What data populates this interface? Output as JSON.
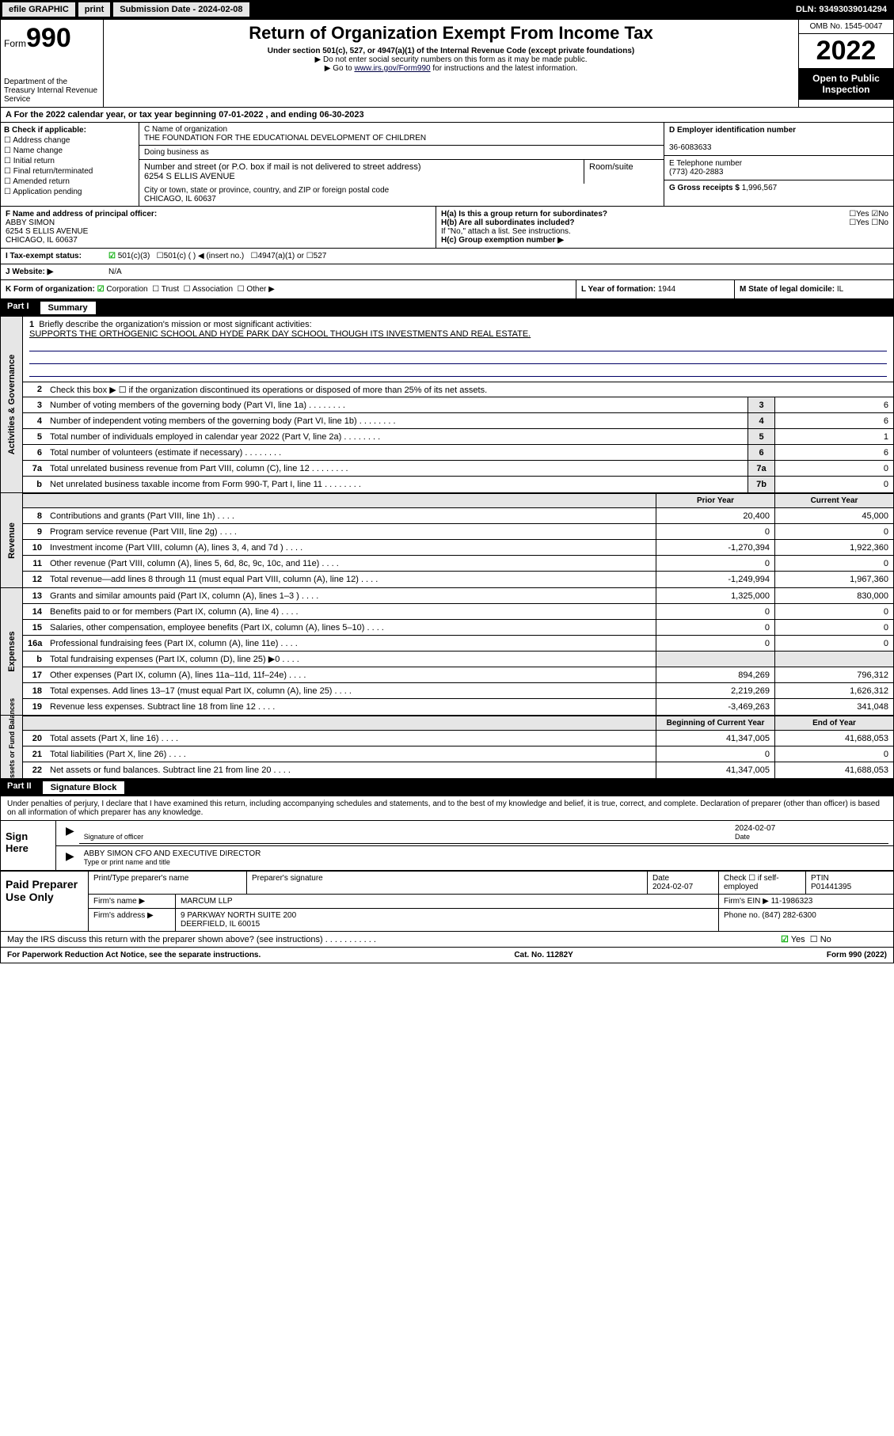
{
  "topbar": {
    "efile": "efile GRAPHIC",
    "print": "print",
    "subdate_label": "Submission Date - 2024-02-08",
    "dln": "DLN: 93493039014294"
  },
  "header": {
    "form_label": "Form",
    "form_num": "990",
    "dept": "Department of the Treasury\nInternal Revenue Service",
    "title": "Return of Organization Exempt From Income Tax",
    "sub1": "Under section 501(c), 527, or 4947(a)(1) of the Internal Revenue Code (except private foundations)",
    "sub2": "▶ Do not enter social security numbers on this form as it may be made public.",
    "sub3_pre": "▶ Go to ",
    "sub3_link": "www.irs.gov/Form990",
    "sub3_post": " for instructions and the latest information.",
    "omb": "OMB No. 1545-0047",
    "year": "2022",
    "inspection": "Open to Public Inspection"
  },
  "row_a": {
    "text": "A For the 2022 calendar year, or tax year beginning 07-01-2022    , and ending 06-30-2023"
  },
  "col_b": {
    "label": "B Check if applicable:",
    "items": [
      "Address change",
      "Name change",
      "Initial return",
      "Final return/terminated",
      "Amended return",
      "Application pending"
    ]
  },
  "col_c": {
    "name_label": "C Name of organization",
    "name": "THE FOUNDATION FOR THE EDUCATIONAL DEVELOPMENT OF CHILDREN",
    "dba_label": "Doing business as",
    "addr_label": "Number and street (or P.O. box if mail is not delivered to street address)",
    "room_label": "Room/suite",
    "addr": "6254 S ELLIS AVENUE",
    "city_label": "City or town, state or province, country, and ZIP or foreign postal code",
    "city": "CHICAGO, IL  60637"
  },
  "col_d": {
    "ein_label": "D Employer identification number",
    "ein": "36-6083633",
    "phone_label": "E Telephone number",
    "phone": "(773) 420-2883",
    "gross_label": "G Gross receipts $",
    "gross": "1,996,567"
  },
  "col_f": {
    "label": "F Name and address of principal officer:",
    "name": "ABBY SIMON",
    "addr1": "6254 S ELLIS AVENUE",
    "addr2": "CHICAGO, IL  60637"
  },
  "col_h": {
    "ha": "H(a)  Is this a group return for subordinates?",
    "hb": "H(b)  Are all subordinates included?",
    "hb_note": "If \"No,\" attach a list. See instructions.",
    "hc": "H(c)  Group exemption number ▶"
  },
  "row_i": {
    "label": "I  Tax-exempt status:",
    "opt1": "501(c)(3)",
    "opt2": "501(c) (   ) ◀ (insert no.)",
    "opt3": "4947(a)(1) or",
    "opt4": "527"
  },
  "row_j": {
    "label": "J  Website: ▶",
    "val": "N/A"
  },
  "row_k": {
    "label": "K Form of organization:",
    "opts": [
      "Corporation",
      "Trust",
      "Association",
      "Other ▶"
    ]
  },
  "row_l": {
    "label": "L Year of formation:",
    "val": "1944"
  },
  "row_m": {
    "label": "M State of legal domicile:",
    "val": "IL"
  },
  "part1": {
    "title": "Part I",
    "label": "Summary",
    "line1": "Briefly describe the organization's mission or most significant activities:",
    "mission": "SUPPORTS THE ORTHOGENIC SCHOOL AND HYDE PARK DAY SCHOOL THOUGH ITS INVESTMENTS AND REAL ESTATE.",
    "line2": "Check this box ▶ ☐  if the organization discontinued its operations or disposed of more than 25% of its net assets.",
    "lines_single": [
      {
        "n": "3",
        "d": "Number of voting members of the governing body (Part VI, line 1a)",
        "c": "3",
        "v": "6"
      },
      {
        "n": "4",
        "d": "Number of independent voting members of the governing body (Part VI, line 1b)",
        "c": "4",
        "v": "6"
      },
      {
        "n": "5",
        "d": "Total number of individuals employed in calendar year 2022 (Part V, line 2a)",
        "c": "5",
        "v": "1"
      },
      {
        "n": "6",
        "d": "Total number of volunteers (estimate if necessary)",
        "c": "6",
        "v": "6"
      },
      {
        "n": "7a",
        "d": "Total unrelated business revenue from Part VIII, column (C), line 12",
        "c": "7a",
        "v": "0"
      },
      {
        "n": "b",
        "d": "Net unrelated business taxable income from Form 990-T, Part I, line 11",
        "c": "7b",
        "v": "0"
      }
    ],
    "hdr_prior": "Prior Year",
    "hdr_curr": "Current Year",
    "revenue": [
      {
        "n": "8",
        "d": "Contributions and grants (Part VIII, line 1h)",
        "p": "20,400",
        "c": "45,000"
      },
      {
        "n": "9",
        "d": "Program service revenue (Part VIII, line 2g)",
        "p": "0",
        "c": "0"
      },
      {
        "n": "10",
        "d": "Investment income (Part VIII, column (A), lines 3, 4, and 7d )",
        "p": "-1,270,394",
        "c": "1,922,360"
      },
      {
        "n": "11",
        "d": "Other revenue (Part VIII, column (A), lines 5, 6d, 8c, 9c, 10c, and 11e)",
        "p": "0",
        "c": "0"
      },
      {
        "n": "12",
        "d": "Total revenue—add lines 8 through 11 (must equal Part VIII, column (A), line 12)",
        "p": "-1,249,994",
        "c": "1,967,360"
      }
    ],
    "expenses": [
      {
        "n": "13",
        "d": "Grants and similar amounts paid (Part IX, column (A), lines 1–3 )",
        "p": "1,325,000",
        "c": "830,000"
      },
      {
        "n": "14",
        "d": "Benefits paid to or for members (Part IX, column (A), line 4)",
        "p": "0",
        "c": "0"
      },
      {
        "n": "15",
        "d": "Salaries, other compensation, employee benefits (Part IX, column (A), lines 5–10)",
        "p": "0",
        "c": "0"
      },
      {
        "n": "16a",
        "d": "Professional fundraising fees (Part IX, column (A), line 11e)",
        "p": "0",
        "c": "0"
      },
      {
        "n": "b",
        "d": "Total fundraising expenses (Part IX, column (D), line 25) ▶0",
        "p": "",
        "c": "",
        "gray": true
      },
      {
        "n": "17",
        "d": "Other expenses (Part IX, column (A), lines 11a–11d, 11f–24e)",
        "p": "894,269",
        "c": "796,312"
      },
      {
        "n": "18",
        "d": "Total expenses. Add lines 13–17 (must equal Part IX, column (A), line 25)",
        "p": "2,219,269",
        "c": "1,626,312"
      },
      {
        "n": "19",
        "d": "Revenue less expenses. Subtract line 18 from line 12",
        "p": "-3,469,263",
        "c": "341,048"
      }
    ],
    "hdr_begin": "Beginning of Current Year",
    "hdr_end": "End of Year",
    "netassets": [
      {
        "n": "20",
        "d": "Total assets (Part X, line 16)",
        "p": "41,347,005",
        "c": "41,688,053"
      },
      {
        "n": "21",
        "d": "Total liabilities (Part X, line 26)",
        "p": "0",
        "c": "0"
      },
      {
        "n": "22",
        "d": "Net assets or fund balances. Subtract line 21 from line 20",
        "p": "41,347,005",
        "c": "41,688,053"
      }
    ],
    "sidebars": [
      "Activities & Governance",
      "Revenue",
      "Expenses",
      "Net Assets or Fund Balances"
    ]
  },
  "part2": {
    "title": "Part II",
    "label": "Signature Block",
    "intro": "Under penalties of perjury, I declare that I have examined this return, including accompanying schedules and statements, and to the best of my knowledge and belief, it is true, correct, and complete. Declaration of preparer (other than officer) is based on all information of which preparer has any knowledge.",
    "sign_here": "Sign Here",
    "sig_officer": "Signature of officer",
    "sig_date": "Date",
    "sig_date_val": "2024-02-07",
    "officer_name": "ABBY SIMON CFO AND EXECUTIVE DIRECTOR",
    "officer_sub": "Type or print name and title",
    "paid": "Paid Preparer Use Only",
    "prep_name_lbl": "Print/Type preparer's name",
    "prep_sig_lbl": "Preparer's signature",
    "prep_date_lbl": "Date",
    "prep_date": "2024-02-07",
    "prep_self": "Check ☐ if self-employed",
    "ptin_lbl": "PTIN",
    "ptin": "P01441395",
    "firm_name_lbl": "Firm's name    ▶",
    "firm_name": "MARCUM LLP",
    "firm_ein_lbl": "Firm's EIN ▶",
    "firm_ein": "11-1986323",
    "firm_addr_lbl": "Firm's address ▶",
    "firm_addr1": "9 PARKWAY NORTH SUITE 200",
    "firm_addr2": "DEERFIELD, IL  60015",
    "firm_phone_lbl": "Phone no.",
    "firm_phone": "(847) 282-6300",
    "discuss": "May the IRS discuss this return with the preparer shown above? (see instructions)"
  },
  "footer": {
    "left": "For Paperwork Reduction Act Notice, see the separate instructions.",
    "mid": "Cat. No. 11282Y",
    "right": "Form 990 (2022)"
  }
}
